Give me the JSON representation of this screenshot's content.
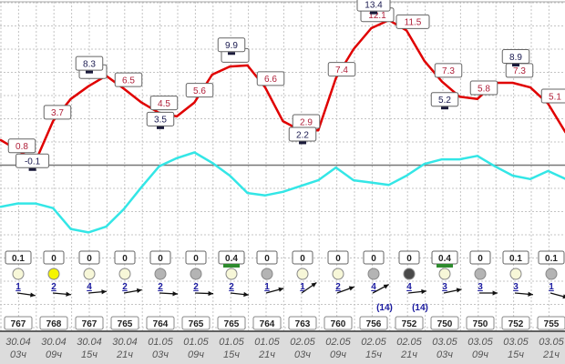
{
  "chart_data": {
    "type": "line",
    "title": "",
    "xlabel": "",
    "ylabel": "",
    "grid": true,
    "y_unit_per_gridline": 2,
    "ylim": [
      -14,
      14
    ],
    "colors": {
      "temperature": "#e00000",
      "second_line": "#33e6e6",
      "zero_line": "#777777",
      "precip_bar": "#2e8b2e",
      "wind_speed": "#1a1aa0",
      "max_min_label": "#1a1a50",
      "temp_label": "#b0203a",
      "date_band": "#dcdcdc"
    },
    "series": [
      {
        "values": [
          2.2,
          1.3,
          0.3,
          3.8,
          5.7,
          6.8,
          7.7,
          6.6,
          5.4,
          4.5,
          4.2,
          5.4,
          7.8,
          8.5,
          8.6,
          6.7,
          3.8,
          3.0,
          3.0,
          7.5,
          10.0,
          11.8,
          12.5,
          11.6,
          9.0,
          7.2,
          5.9,
          5.7,
          7.1,
          7.1,
          6.7,
          5.3,
          2.8
        ]
      },
      {
        "values": [
          -3.6,
          -3.3,
          -3.3,
          -3.7,
          -5.5,
          -5.8,
          -5.3,
          -3.8,
          -1.9,
          -0.1,
          0.6,
          1.1,
          0.2,
          -0.9,
          -2.4,
          -2.6,
          -2.3,
          -1.8,
          -1.3,
          -0.2,
          -1.3,
          -1.5,
          -1.7,
          -0.9,
          0.1,
          0.5,
          0.5,
          0.8,
          -0.1,
          -0.9,
          -1.2,
          -0.5,
          -1.2
        ]
      }
    ],
    "temp_labels": [
      {
        "col": 0,
        "text": "0.8",
        "value": 0.8
      },
      {
        "col": 1,
        "text": "3.7",
        "value": 3.7
      },
      {
        "col": 2,
        "text": "",
        "value": 7.2
      },
      {
        "col": 3,
        "text": "6.5",
        "value": 6.5
      },
      {
        "col": 4,
        "text": "4.5",
        "value": 4.5
      },
      {
        "col": 5,
        "text": "5.6",
        "value": 5.6
      },
      {
        "col": 6,
        "text": "",
        "value": 8.6
      },
      {
        "col": 7,
        "text": "6.6",
        "value": 6.6
      },
      {
        "col": 8,
        "text": "2.9",
        "value": 2.9
      },
      {
        "col": 9,
        "text": "7.4",
        "value": 7.4
      },
      {
        "col": 10,
        "text": "12.1",
        "value": 12.1
      },
      {
        "col": 11,
        "text": "11.5",
        "value": 11.5
      },
      {
        "col": 12,
        "text": "7.3",
        "value": 7.3
      },
      {
        "col": 13,
        "text": "5.8",
        "value": 5.8
      },
      {
        "col": 14,
        "text": "7.3",
        "value": 7.3
      },
      {
        "col": 15,
        "text": "5.1",
        "value": 5.1
      }
    ],
    "extreme_labels": [
      {
        "col": 0.4,
        "text": "-0.1",
        "value": -0.1
      },
      {
        "col": 2,
        "text": "8.3",
        "value": 8.3
      },
      {
        "col": 4,
        "text": "3.5",
        "value": 3.5
      },
      {
        "col": 6,
        "text": "9.9",
        "value": 9.9
      },
      {
        "col": 8,
        "text": "2.2",
        "value": 2.2
      },
      {
        "col": 10,
        "text": "13.4",
        "value": 13.4
      },
      {
        "col": 12,
        "text": "5.2",
        "value": 5.2
      },
      {
        "col": 14,
        "text": "8.9",
        "value": 8.9
      }
    ],
    "columns": [
      {
        "date": "30.04",
        "hour": "03ч",
        "precip": "0.1",
        "precip_bar": false,
        "cloud": "light",
        "wind": "1",
        "wind_angle": 8,
        "gust": "",
        "pressure": "767"
      },
      {
        "date": "30.04",
        "hour": "09ч",
        "precip": "0",
        "precip_bar": false,
        "cloud": "sun",
        "wind": "2",
        "wind_angle": 5,
        "gust": "",
        "pressure": "768"
      },
      {
        "date": "30.04",
        "hour": "15ч",
        "precip": "0",
        "precip_bar": false,
        "cloud": "light",
        "wind": "4",
        "wind_angle": -5,
        "gust": "",
        "pressure": "767"
      },
      {
        "date": "30.04",
        "hour": "21ч",
        "precip": "0",
        "precip_bar": false,
        "cloud": "light",
        "wind": "2",
        "wind_angle": -10,
        "gust": "",
        "pressure": "765"
      },
      {
        "date": "01.05",
        "hour": "03ч",
        "precip": "0",
        "precip_bar": false,
        "cloud": "gray",
        "wind": "2",
        "wind_angle": 3,
        "gust": "",
        "pressure": "764"
      },
      {
        "date": "01.05",
        "hour": "09ч",
        "precip": "0",
        "precip_bar": false,
        "cloud": "gray",
        "wind": "2",
        "wind_angle": 2,
        "gust": "",
        "pressure": "765"
      },
      {
        "date": "01.05",
        "hour": "15ч",
        "precip": "0.4",
        "precip_bar": true,
        "cloud": "light",
        "wind": "2",
        "wind_angle": 6,
        "gust": "",
        "pressure": "765"
      },
      {
        "date": "01.05",
        "hour": "21ч",
        "precip": "0",
        "precip_bar": false,
        "cloud": "gray",
        "wind": "1",
        "wind_angle": -15,
        "gust": "",
        "pressure": "764"
      },
      {
        "date": "02.05",
        "hour": "03ч",
        "precip": "0",
        "precip_bar": false,
        "cloud": "light",
        "wind": "1",
        "wind_angle": -35,
        "gust": "",
        "pressure": "763"
      },
      {
        "date": "02.05",
        "hour": "09ч",
        "precip": "0",
        "precip_bar": false,
        "cloud": "light",
        "wind": "2",
        "wind_angle": -20,
        "gust": "",
        "pressure": "760"
      },
      {
        "date": "02.05",
        "hour": "15ч",
        "precip": "0",
        "precip_bar": false,
        "cloud": "gray",
        "wind": "4",
        "wind_angle": -28,
        "gust": "(14)",
        "pressure": "756"
      },
      {
        "date": "02.05",
        "hour": "21ч",
        "precip": "0",
        "precip_bar": false,
        "cloud": "dark",
        "wind": "4",
        "wind_angle": -6,
        "gust": "(14)",
        "pressure": "752"
      },
      {
        "date": "03.05",
        "hour": "03ч",
        "precip": "0.4",
        "precip_bar": true,
        "cloud": "light",
        "wind": "3",
        "wind_angle": -12,
        "gust": "",
        "pressure": "750"
      },
      {
        "date": "03.05",
        "hour": "09ч",
        "precip": "0",
        "precip_bar": false,
        "cloud": "gray",
        "wind": "3",
        "wind_angle": 0,
        "gust": "",
        "pressure": "750"
      },
      {
        "date": "03.05",
        "hour": "15ч",
        "precip": "0.1",
        "precip_bar": false,
        "cloud": "light",
        "wind": "3",
        "wind_angle": 5,
        "gust": "",
        "pressure": "752"
      },
      {
        "date": "03.05",
        "hour": "21ч",
        "precip": "0.1",
        "precip_bar": false,
        "cloud": "gray",
        "wind": "1",
        "wind_angle": 15,
        "gust": "",
        "pressure": "755"
      }
    ],
    "cloud_colors": {
      "light": "#f7f7d8",
      "sun": "#f5f500",
      "gray": "#b4b4b4",
      "dark": "#4a4a4a"
    }
  }
}
